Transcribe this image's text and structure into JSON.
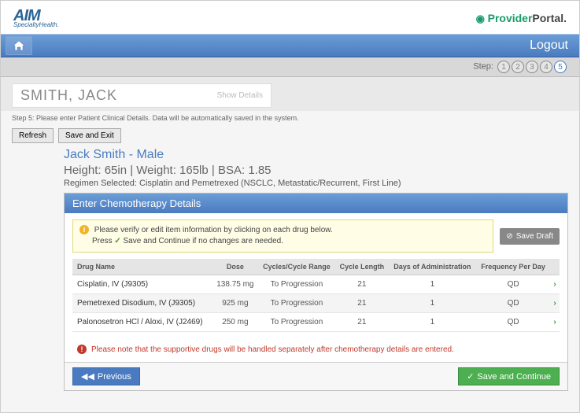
{
  "brand": {
    "aim": "AIM",
    "aim_sub": "SpecialtyHealth.",
    "provider": "Provider",
    "portal": "Portal",
    "dot": "."
  },
  "topbar": {
    "logout": "Logout"
  },
  "wizard": {
    "step_label": "Step:",
    "steps": [
      "1",
      "2",
      "3",
      "4",
      "5"
    ],
    "active_index": 4
  },
  "search": {
    "patient_display": "SMITH, JACK",
    "show_details": "Show Details"
  },
  "instruction": "Step 5: Please enter Patient Clinical Details. Data will be automatically saved in the system.",
  "actions": {
    "refresh": "Refresh",
    "save_exit": "Save and Exit"
  },
  "patient": {
    "name_line": "Jack Smith - Male",
    "vitals": "Height: 65in  |  Weight: 165lb  |  BSA: 1.85",
    "regimen": "Regimen Selected: Cisplatin and Pemetrexed (NSCLC, Metastatic/Recurrent, First Line)"
  },
  "panel": {
    "title": "Enter Chemotherapy Details",
    "info_line1": "Please verify or edit item information by clicking on each drug below.",
    "info_line2_prefix": "Press ",
    "info_line2_suffix": " Save and Continue if no changes are needed.",
    "save_draft": "Save Draft",
    "columns": [
      "Drug Name",
      "Dose",
      "Cycles/Cycle Range",
      "Cycle Length",
      "Days of Administration",
      "Frequency Per Day",
      ""
    ],
    "rows": [
      {
        "name": "Cisplatin, IV (J9305)",
        "dose": "138.75 mg",
        "range": "To Progression",
        "length": "21",
        "days": "1",
        "freq": "QD"
      },
      {
        "name": "Pemetrexed Disodium, IV (J9305)",
        "dose": "925 mg",
        "range": "To Progression",
        "length": "21",
        "days": "1",
        "freq": "QD"
      },
      {
        "name": "Palonosetron HCl / Aloxi, IV (J2469)",
        "dose": "250 mg",
        "range": "To Progression",
        "length": "21",
        "days": "1",
        "freq": "QD"
      }
    ],
    "note": "Please note that the supportive drugs will be handled separately after chemotherapy details are entered.",
    "previous": "Previous",
    "continue": "Save and Continue"
  },
  "colors": {
    "primary_blue": "#4a7bc0",
    "green": "#4caf50",
    "warn_bg": "#fffde6",
    "error": "#c0392b"
  }
}
